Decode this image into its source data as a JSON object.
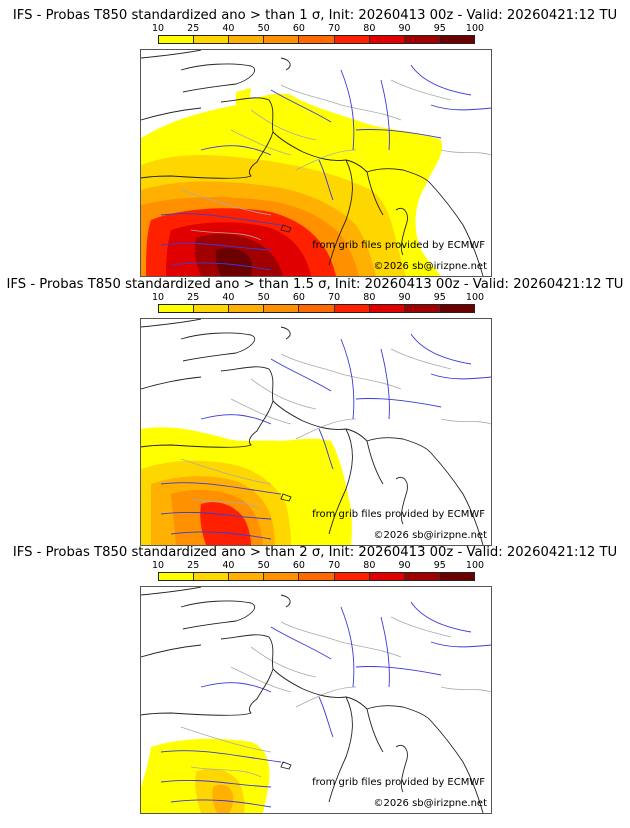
{
  "panels": [
    {
      "title": "IFS - Probas T850  standardized ano > than 1 σ, Init: 20260413 00z - Valid: 20260421:12 TU",
      "threshold": "1 σ"
    },
    {
      "title": "IFS - Probas T850  standardized ano > than 1.5 σ, Init: 20260413 00z - Valid: 20260421:12 TU",
      "threshold": "1.5 σ"
    },
    {
      "title": "IFS - Probas T850  standardized ano > than 2 σ, Init: 20260413 00z - Valid: 20260421:12 TU",
      "threshold": "2 σ"
    }
  ],
  "colorbar": {
    "ticks": [
      "10",
      "25",
      "40",
      "50",
      "60",
      "70",
      "80",
      "90",
      "95",
      "100"
    ],
    "colors": [
      "#ffff00",
      "#ffd700",
      "#ffb000",
      "#ff9000",
      "#ff6a00",
      "#ff2000",
      "#e00000",
      "#a00000",
      "#6a0000"
    ]
  },
  "credits": {
    "source": "from grib files provided by ECMWF",
    "copyright": "©2026 sb@irizpne.net"
  },
  "map_colors": {
    "coast": "#222222",
    "rivers": "#3a3ad8",
    "borders": "#aaaaaa"
  }
}
